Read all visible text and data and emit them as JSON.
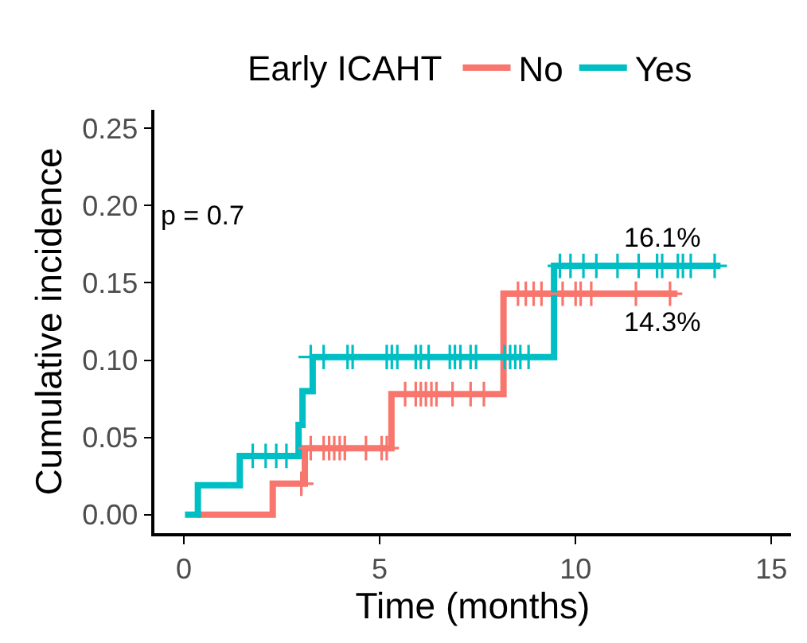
{
  "chart_data": {
    "type": "step",
    "legend_title": "Early ICAHT",
    "legend": "top",
    "grid": false,
    "xlabel": "Time (months)",
    "ylabel": "Cumulative incidence",
    "xlim": [
      -0.75,
      15.5
    ],
    "xticks": [
      0,
      5,
      10,
      15
    ],
    "ylim": [
      -0.012,
      0.262
    ],
    "yticks": [
      {
        "value": 0,
        "label": "0.00"
      },
      {
        "value": 0.05,
        "label": "0.05"
      },
      {
        "value": 0.1,
        "label": "0.10"
      },
      {
        "value": 0.15,
        "label": "0.15"
      },
      {
        "value": 0.2,
        "label": "0.20"
      },
      {
        "value": 0.25,
        "label": "0.25"
      }
    ],
    "series": [
      {
        "name": "No",
        "color": "#f8766d",
        "marker": "none",
        "x": [
          0.36,
          2.27,
          3.09,
          5.3,
          8.16,
          12.6
        ],
        "values": [
          0,
          0.02,
          0.043,
          0.078,
          0.143,
          0.143
        ]
      },
      {
        "name": "Yes",
        "color": "#00bfc4",
        "marker": "none",
        "x": [
          0.03,
          0.36,
          1.43,
          2.93,
          3.03,
          3.29,
          9.45,
          13.7
        ],
        "values": [
          0,
          0.019,
          0.038,
          0.058,
          0.08,
          0.102,
          0.161,
          0.161
        ]
      },
      {
        "color": "#f8766d",
        "type": "scatter",
        "marker": "cross",
        "x": [
          3.0,
          3.24,
          3.57,
          3.71,
          3.84,
          3.98,
          4.11,
          4.65,
          5.05,
          5.18,
          5.65,
          5.92,
          6.05,
          6.18,
          6.32,
          6.45,
          6.86,
          7.32,
          7.66,
          8.53,
          8.73,
          8.93,
          9.13,
          9.67,
          10.0,
          10.13,
          10.4,
          11.54,
          12.41
        ],
        "values": [
          0.02,
          0.043,
          0.043,
          0.043,
          0.043,
          0.043,
          0.043,
          0.043,
          0.043,
          0.043,
          0.078,
          0.078,
          0.078,
          0.078,
          0.078,
          0.078,
          0.078,
          0.078,
          0.078,
          0.143,
          0.143,
          0.143,
          0.143,
          0.143,
          0.143,
          0.143,
          0.143,
          0.143,
          0.143
        ]
      },
      {
        "color": "#00bfc4",
        "type": "scatter",
        "marker": "cross",
        "x": [
          1.76,
          2.09,
          2.36,
          2.62,
          3.24,
          3.57,
          4.18,
          4.31,
          5.18,
          5.31,
          5.45,
          5.92,
          6.05,
          6.25,
          6.79,
          6.92,
          7.06,
          7.32,
          7.46,
          8.19,
          8.33,
          8.46,
          8.59,
          8.8,
          9.6,
          9.87,
          10.2,
          10.53,
          11.07,
          11.61,
          12.08,
          12.21,
          12.61,
          12.74,
          12.94,
          13.55
        ],
        "values": [
          0.038,
          0.038,
          0.038,
          0.038,
          0.102,
          0.102,
          0.102,
          0.102,
          0.102,
          0.102,
          0.102,
          0.102,
          0.102,
          0.102,
          0.102,
          0.102,
          0.102,
          0.102,
          0.102,
          0.102,
          0.102,
          0.102,
          0.102,
          0.102,
          0.161,
          0.161,
          0.161,
          0.161,
          0.161,
          0.161,
          0.161,
          0.161,
          0.161,
          0.161,
          0.161,
          0.161
        ]
      }
    ],
    "annotations": [
      "p = 0.7",
      {
        "text": "16.1%",
        "x": 12.2,
        "y": 0.161
      },
      {
        "text": "14.3%",
        "x": 12.2,
        "y": 0.143
      }
    ]
  }
}
